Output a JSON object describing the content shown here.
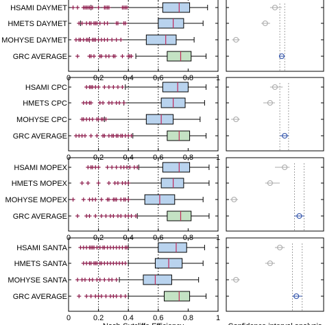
{
  "chart_data": {
    "type": "boxplot",
    "xlabel": "Nash-Sutcliffe Efficiency",
    "ci_xlabel": "Confidence interval analysis",
    "x_ticks": [
      "0",
      "0.2",
      "0.4",
      "0.6",
      "0.8",
      "1"
    ],
    "xlim": [
      0,
      1
    ],
    "reference_lines": [
      0.2,
      0.4,
      0.6
    ],
    "colors": {
      "model_box": "#b9d3ee",
      "average_box": "#c4e2c4",
      "median": "#c0285a",
      "outlier": "#8b1a4a",
      "ci_point": "#aaaaaa",
      "ci_average_point": "#2c4fa8"
    },
    "panels": [
      {
        "rows": [
          {
            "label": "HSAMI DAYMET",
            "kind": "model",
            "whisker": [
              0.15,
              0.93
            ],
            "box": [
              0.63,
              0.81
            ],
            "median": 0.74,
            "outliers": [
              0.03,
              0.06,
              0.1,
              0.12,
              0.11,
              0.13,
              0.14,
              0.15,
              0.16,
              0.2,
              0.24,
              0.25,
              0.26,
              0.27,
              0.36,
              0.37,
              0.38,
              0.39
            ]
          },
          {
            "label": "HMETS DAYMET",
            "kind": "model",
            "whisker": [
              0.08,
              0.9
            ],
            "box": [
              0.6,
              0.77
            ],
            "median": 0.7,
            "outliers": [
              0.07,
              0.09,
              0.12,
              0.14,
              0.15,
              0.17,
              0.18,
              0.19,
              0.21,
              0.24,
              0.26,
              0.32,
              0.33,
              0.37,
              0.38
            ]
          },
          {
            "label": "MOHYSE DAYMET",
            "kind": "model",
            "whisker": [
              0.14,
              0.84
            ],
            "box": [
              0.52,
              0.72
            ],
            "median": 0.65,
            "outliers": [
              0.05,
              0.07,
              0.08,
              0.1,
              0.12,
              0.13,
              0.14,
              0.16,
              0.17,
              0.18,
              0.2,
              0.22,
              0.24,
              0.26,
              0.29,
              0.32,
              0.35
            ]
          },
          {
            "label": "GRC AVERAGE",
            "kind": "average",
            "whisker": [
              0.45,
              0.92
            ],
            "box": [
              0.66,
              0.82
            ],
            "median": 0.75,
            "outliers": [
              0.06,
              0.14,
              0.15,
              0.17,
              0.21,
              0.22,
              0.25,
              0.27,
              0.3,
              0.31,
              0.36,
              0.4,
              0.41,
              0.42
            ]
          }
        ],
        "ci": {
          "points": [
            0.5,
            0.4,
            0.1,
            0.57
          ],
          "intervals": [
            [
              0.45,
              0.57
            ],
            [
              0.36,
              0.45
            ],
            [
              0.06,
              0.14
            ],
            [
              0.55,
              0.6
            ]
          ]
        }
      },
      {
        "rows": [
          {
            "label": "HSAMI CPC",
            "kind": "model",
            "whisker": [
              0.38,
              0.92
            ],
            "box": [
              0.63,
              0.8
            ],
            "median": 0.73,
            "outliers": [
              0.12,
              0.14,
              0.15,
              0.16,
              0.18,
              0.2,
              0.24,
              0.27,
              0.3,
              0.33,
              0.36
            ]
          },
          {
            "label": "HMETS CPC",
            "kind": "model",
            "whisker": [
              0.37,
              0.91
            ],
            "box": [
              0.62,
              0.78
            ],
            "median": 0.7,
            "outliers": [
              0.1,
              0.12,
              0.14,
              0.15,
              0.21,
              0.23,
              0.27,
              0.29,
              0.32,
              0.34,
              0.37
            ]
          },
          {
            "label": "MOHYSE CPC",
            "kind": "model",
            "whisker": [
              0.24,
              0.88
            ],
            "box": [
              0.52,
              0.7
            ],
            "median": 0.62,
            "outliers": [
              0.09,
              0.1,
              0.12,
              0.14,
              0.16,
              0.19,
              0.2,
              0.22,
              0.23,
              0.25
            ]
          },
          {
            "label": "GRC AVERAGE",
            "kind": "average",
            "whisker": [
              0.43,
              0.92
            ],
            "box": [
              0.66,
              0.81
            ],
            "median": 0.74,
            "outliers": [
              0.05,
              0.07,
              0.09,
              0.11,
              0.15,
              0.19,
              0.23,
              0.24,
              0.27,
              0.29,
              0.3,
              0.32,
              0.33,
              0.35,
              0.36,
              0.38,
              0.4,
              0.42
            ]
          }
        ],
        "ci": {
          "points": [
            0.5,
            0.45,
            0.1,
            0.6
          ],
          "intervals": [
            [
              0.45,
              0.58
            ],
            [
              0.38,
              0.5
            ],
            [
              0.05,
              0.14
            ],
            [
              0.55,
              0.64
            ]
          ]
        }
      },
      {
        "rows": [
          {
            "label": "HSAMI MOPEX",
            "kind": "model",
            "whisker": [
              0.47,
              0.94
            ],
            "box": [
              0.63,
              0.81
            ],
            "median": 0.74,
            "outliers": [
              0.13,
              0.15,
              0.16,
              0.18,
              0.2,
              0.26,
              0.29,
              0.32,
              0.35,
              0.37,
              0.39,
              0.41,
              0.44,
              0.46
            ]
          },
          {
            "label": "HMETS MOPEX",
            "kind": "model",
            "whisker": [
              0.4,
              0.94
            ],
            "box": [
              0.62,
              0.77
            ],
            "median": 0.7,
            "outliers": [
              0.09,
              0.13,
              0.2,
              0.27,
              0.31,
              0.33,
              0.36,
              0.38,
              0.4
            ]
          },
          {
            "label": "MOHYSE MOPEX",
            "kind": "model",
            "whisker": [
              0.4,
              0.9
            ],
            "box": [
              0.51,
              0.71
            ],
            "median": 0.61,
            "outliers": [
              0.03,
              0.1,
              0.14,
              0.16,
              0.18,
              0.22,
              0.26,
              0.27,
              0.3,
              0.31,
              0.32,
              0.35,
              0.37,
              0.38,
              0.4
            ]
          },
          {
            "label": "GRC AVERAGE",
            "kind": "average",
            "whisker": [
              0.46,
              0.94
            ],
            "box": [
              0.66,
              0.82
            ],
            "median": 0.75,
            "outliers": [
              0.06,
              0.12,
              0.14,
              0.18,
              0.22,
              0.25,
              0.28,
              0.3,
              0.33,
              0.35,
              0.38,
              0.4,
              0.42,
              0.45
            ]
          }
        ],
        "ci": {
          "points": [
            0.6,
            0.45,
            0.08,
            0.75
          ],
          "intervals": [
            [
              0.5,
              0.65
            ],
            [
              0.4,
              0.55
            ],
            [
              0.04,
              0.12
            ],
            [
              0.7,
              0.8
            ]
          ]
        }
      },
      {
        "rows": [
          {
            "label": "HSAMI SANTA",
            "kind": "model",
            "whisker": [
              0.4,
              0.91
            ],
            "box": [
              0.6,
              0.79
            ],
            "median": 0.72,
            "outliers": [
              0.08,
              0.1,
              0.12,
              0.14,
              0.15,
              0.16,
              0.17,
              0.19,
              0.21,
              0.23,
              0.24,
              0.26,
              0.28,
              0.3,
              0.32,
              0.34,
              0.36,
              0.38,
              0.39
            ]
          },
          {
            "label": "HMETS SANTA",
            "kind": "model",
            "whisker": [
              0.4,
              0.9
            ],
            "box": [
              0.58,
              0.76
            ],
            "median": 0.67,
            "outliers": [
              0.1,
              0.12,
              0.14,
              0.15,
              0.17,
              0.18,
              0.19,
              0.21,
              0.22,
              0.24,
              0.26,
              0.28,
              0.3,
              0.32,
              0.34,
              0.36,
              0.38
            ]
          },
          {
            "label": "MOHYSE SANTA",
            "kind": "model",
            "whisker": [
              0.34,
              0.87
            ],
            "box": [
              0.5,
              0.69
            ],
            "median": 0.58,
            "outliers": [
              0.06,
              0.09,
              0.11,
              0.14,
              0.16,
              0.19,
              0.21,
              0.24,
              0.27,
              0.29,
              0.32
            ]
          },
          {
            "label": "GRC AVERAGE",
            "kind": "average",
            "whisker": [
              0.4,
              0.92
            ],
            "box": [
              0.64,
              0.81
            ],
            "median": 0.74,
            "outliers": [
              0.07,
              0.12,
              0.15,
              0.18,
              0.2,
              0.22,
              0.25,
              0.28,
              0.3,
              0.32,
              0.35,
              0.38
            ]
          }
        ],
        "ci": {
          "points": [
            0.55,
            0.45,
            0.1,
            0.72
          ],
          "intervals": [
            [
              0.5,
              0.6
            ],
            [
              0.4,
              0.5
            ],
            [
              0.05,
              0.14
            ],
            [
              0.68,
              0.78
            ]
          ]
        }
      }
    ]
  }
}
